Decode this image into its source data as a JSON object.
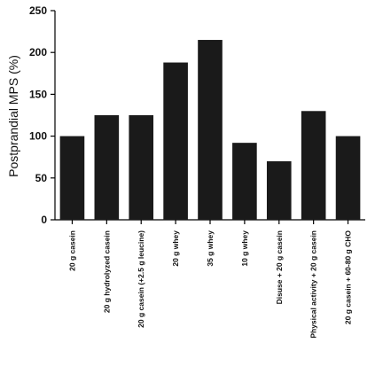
{
  "chart_data": {
    "type": "bar",
    "title": "",
    "xlabel": "",
    "ylabel": "Postprandial MPS (%)",
    "ylim": [
      0,
      250
    ],
    "yticks": [
      0,
      50,
      100,
      150,
      200,
      250
    ],
    "grid": false,
    "categories": [
      "20 g casein",
      "20 g hydrolyzed casein",
      "20 g casein (+2.5 g leucine)",
      "20 g whey",
      "35 g whey",
      "10 g whey",
      "Disuse + 20 g casein",
      "Physical activity + 20 g casein",
      "20 g casein + 60-80 g CHO"
    ],
    "values": [
      100,
      125,
      125,
      188,
      215,
      92,
      70,
      130,
      100
    ],
    "bar_color": "#1a1a1a",
    "axis_color": "#000000"
  }
}
